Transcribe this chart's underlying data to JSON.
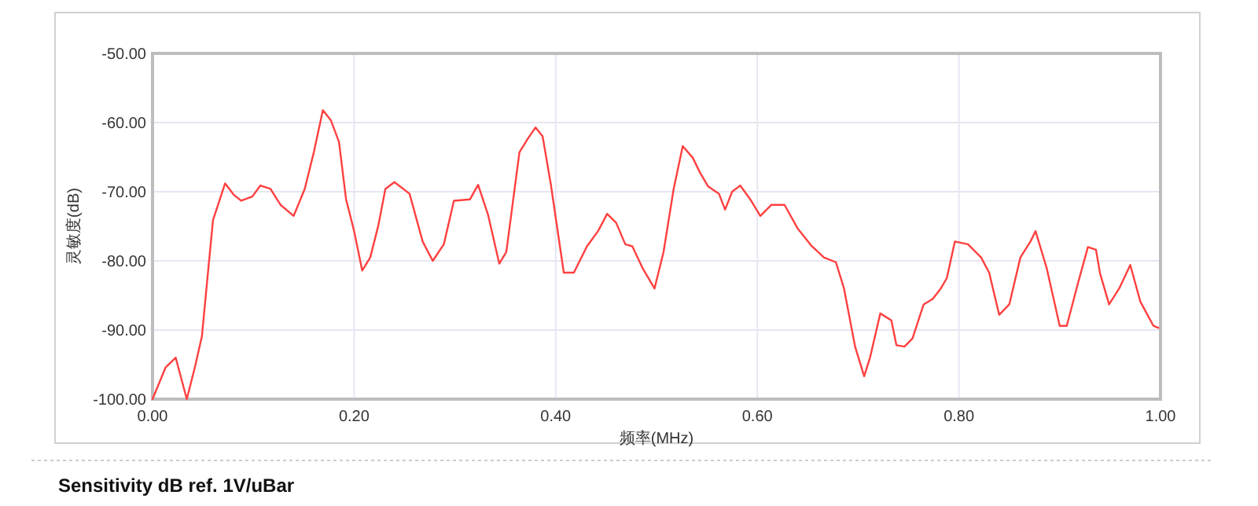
{
  "chart_data": {
    "type": "line",
    "xlabel": "频率(MHz)",
    "ylabel": "灵敏度(dB)",
    "annotations": [
      "Sensitivity dB ref. 1V/uBar"
    ],
    "color": "#ff4040",
    "grid": true,
    "xlim": [
      0,
      1
    ],
    "ylim": [
      -100,
      -50
    ],
    "xticks": [
      {
        "value": 0,
        "label": "0.00"
      },
      {
        "value": 0.2,
        "label": "0.20"
      },
      {
        "value": 0.4,
        "label": "0.40"
      },
      {
        "value": 0.6,
        "label": "0.60"
      },
      {
        "value": 0.8,
        "label": "0.80"
      },
      {
        "value": 1,
        "label": "1.00"
      }
    ],
    "yticks": [
      {
        "value": -100,
        "label": "-100.00"
      },
      {
        "value": -90,
        "label": "-90.00"
      },
      {
        "value": -80,
        "label": "-80.00"
      },
      {
        "value": -70,
        "label": "-70.00"
      },
      {
        "value": -60,
        "label": "-60.00"
      },
      {
        "value": -50,
        "label": "-50.00"
      }
    ],
    "x": [
      0,
      0.013,
      0.023,
      0.034,
      0.042,
      0.049,
      0.055,
      0.06,
      0.072,
      0.081,
      0.088,
      0.099,
      0.107,
      0.117,
      0.127,
      0.14,
      0.151,
      0.16,
      0.169,
      0.177,
      0.185,
      0.192,
      0.2,
      0.208,
      0.216,
      0.224,
      0.231,
      0.24,
      0.255,
      0.268,
      0.278,
      0.289,
      0.299,
      0.315,
      0.323,
      0.333,
      0.344,
      0.351,
      0.364,
      0.372,
      0.38,
      0.387,
      0.395,
      0.408,
      0.418,
      0.431,
      0.442,
      0.451,
      0.46,
      0.469,
      0.476,
      0.486,
      0.498,
      0.507,
      0.517,
      0.526,
      0.536,
      0.543,
      0.551,
      0.562,
      0.568,
      0.575,
      0.583,
      0.593,
      0.603,
      0.614,
      0.627,
      0.64,
      0.653,
      0.666,
      0.678,
      0.686,
      0.697,
      0.706,
      0.712,
      0.722,
      0.733,
      0.738,
      0.746,
      0.754,
      0.765,
      0.774,
      0.782,
      0.788,
      0.796,
      0.809,
      0.822,
      0.83,
      0.84,
      0.85,
      0.861,
      0.871,
      0.876,
      0.887,
      0.9,
      0.907,
      0.918,
      0.928,
      0.936,
      0.94,
      0.949,
      0.959,
      0.97,
      0.98,
      0.993,
      0.998
    ],
    "values": [
      -100,
      -95.4,
      -94,
      -100,
      -95.4,
      -90.9,
      -81.7,
      -74.1,
      -68.8,
      -70.5,
      -71.3,
      -70.7,
      -69.1,
      -69.6,
      -71.9,
      -73.5,
      -69.6,
      -64.3,
      -58.2,
      -59.7,
      -62.8,
      -71.1,
      -75.7,
      -81.4,
      -79.5,
      -74.9,
      -69.6,
      -68.6,
      -70.3,
      -77.2,
      -80,
      -77.6,
      -71.3,
      -71.1,
      -69,
      -73.4,
      -80.4,
      -78.7,
      -64.3,
      -62.4,
      -60.7,
      -62,
      -68.8,
      -81.7,
      -81.7,
      -77.9,
      -75.7,
      -73.2,
      -74.5,
      -77.6,
      -77.9,
      -81,
      -84,
      -78.7,
      -69.6,
      -63.4,
      -65.1,
      -67.2,
      -69.2,
      -70.3,
      -72.6,
      -70,
      -69.1,
      -71.1,
      -73.5,
      -71.9,
      -71.9,
      -75.3,
      -77.7,
      -79.5,
      -80.2,
      -84,
      -92.4,
      -96.7,
      -93.9,
      -87.6,
      -88.6,
      -92.2,
      -92.4,
      -91.2,
      -86.3,
      -85.5,
      -84,
      -82.5,
      -77.2,
      -77.6,
      -79.5,
      -81.7,
      -87.8,
      -86.3,
      -79.5,
      -77.2,
      -75.7,
      -81,
      -89.4,
      -89.4,
      -83.3,
      -78,
      -78.4,
      -81.8,
      -86.3,
      -84,
      -80.6,
      -85.9,
      -89.4,
      -89.7
    ]
  }
}
